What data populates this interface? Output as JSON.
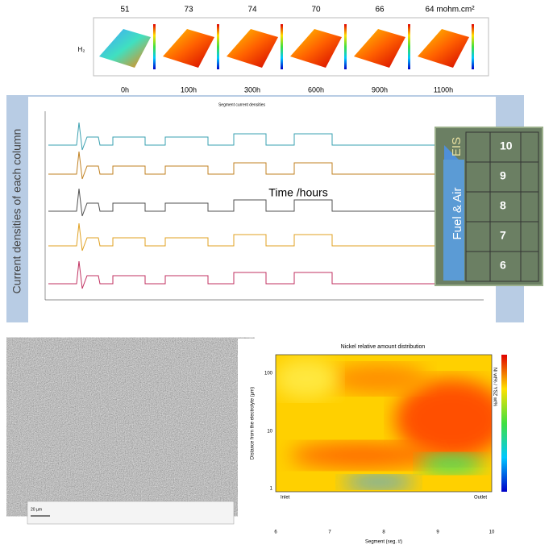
{
  "top_panel": {
    "gas": "H₂",
    "resistances": [
      "51",
      "73",
      "74",
      "70",
      "66",
      "64 mohm.cm²"
    ],
    "times": [
      "0h",
      "100h",
      "300h",
      "600h",
      "900h",
      "1100h"
    ]
  },
  "current_panel": {
    "title": "Segment current densities",
    "y_label": "Current densities of each column",
    "annotation": "Time /hours",
    "legend": {
      "eis": "EIS",
      "flow": "Fuel & Air",
      "rows": [
        "10",
        "9",
        "8",
        "7",
        "6"
      ]
    }
  },
  "nickel_panel": {
    "title": "Nickel relative amount distribution",
    "y_label": "Distance from the electrolyte (µm)",
    "x_label": "Segment (seg. #)",
    "colorbar_label": "Ni wt% / YSZ wt%",
    "yticks": [
      "100",
      "10",
      "1"
    ],
    "xticks": [
      "6",
      "7",
      "8",
      "9",
      "10"
    ],
    "inlet": "Inlet",
    "outlet": "Outlet"
  },
  "sem_panel": {
    "scale": "20 µm"
  }
}
